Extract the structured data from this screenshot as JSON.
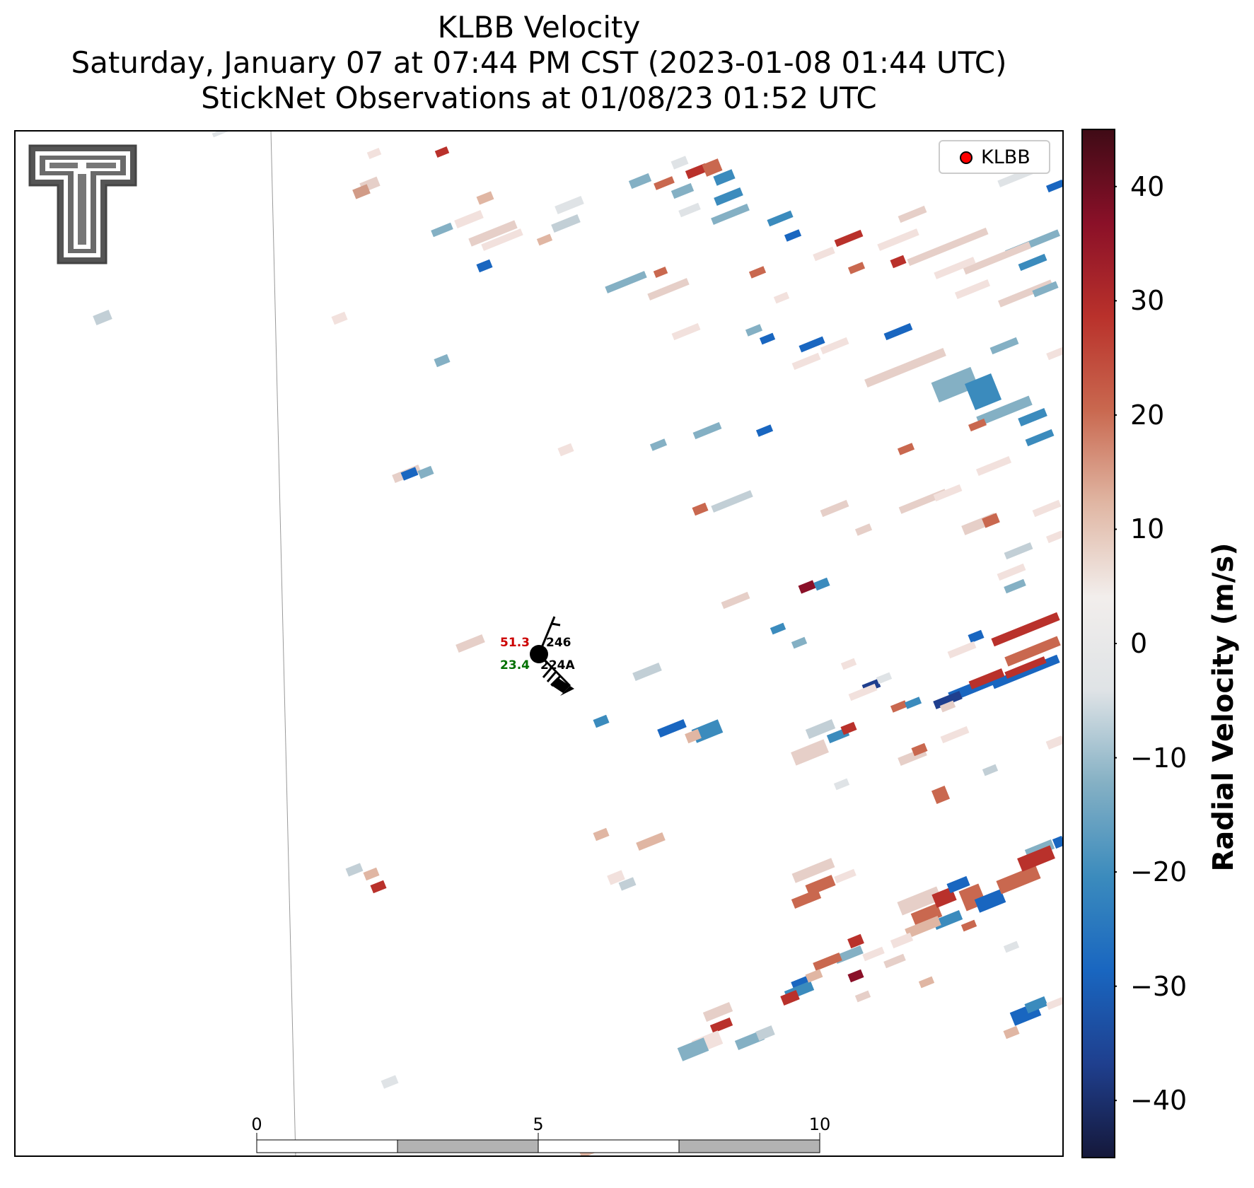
{
  "title": {
    "line1": "KLBB Velocity",
    "line2": "Saturday, January 07 at 07:44 PM CST (2023-01-08 01:44 UTC)",
    "line3": "StickNet Observations at 01/08/23 01:52 UTC"
  },
  "legend": {
    "label": "KLBB",
    "marker_color": "#ff0000"
  },
  "colorbar": {
    "label": "Radial Velocity (m/s)",
    "min": -45,
    "max": 45,
    "ticks": [
      "40",
      "30",
      "20",
      "10",
      "0",
      "−10",
      "−20",
      "−30",
      "−40"
    ],
    "tick_values": [
      40,
      30,
      20,
      10,
      0,
      -10,
      -20,
      -30,
      -40
    ],
    "colors": [
      "#15183a",
      "#1f3f8e",
      "#1966c0",
      "#3b8bbd",
      "#84b0c4",
      "#dfe3e6",
      "#f2eeec",
      "#e0b6a3",
      "#c9684f",
      "#b9312b",
      "#8a1028",
      "#3f0b16"
    ]
  },
  "scale_bar": {
    "labels": [
      "0",
      "5",
      "10"
    ],
    "unit": "km"
  },
  "station": {
    "temperature": "51.3",
    "dewpoint": "23.4",
    "pressure_code": "246",
    "station_id": "224A",
    "temp_color": "#cc0000",
    "dew_color": "#007000"
  },
  "logo": {
    "icon": "texas-tech-double-t-logo"
  }
}
